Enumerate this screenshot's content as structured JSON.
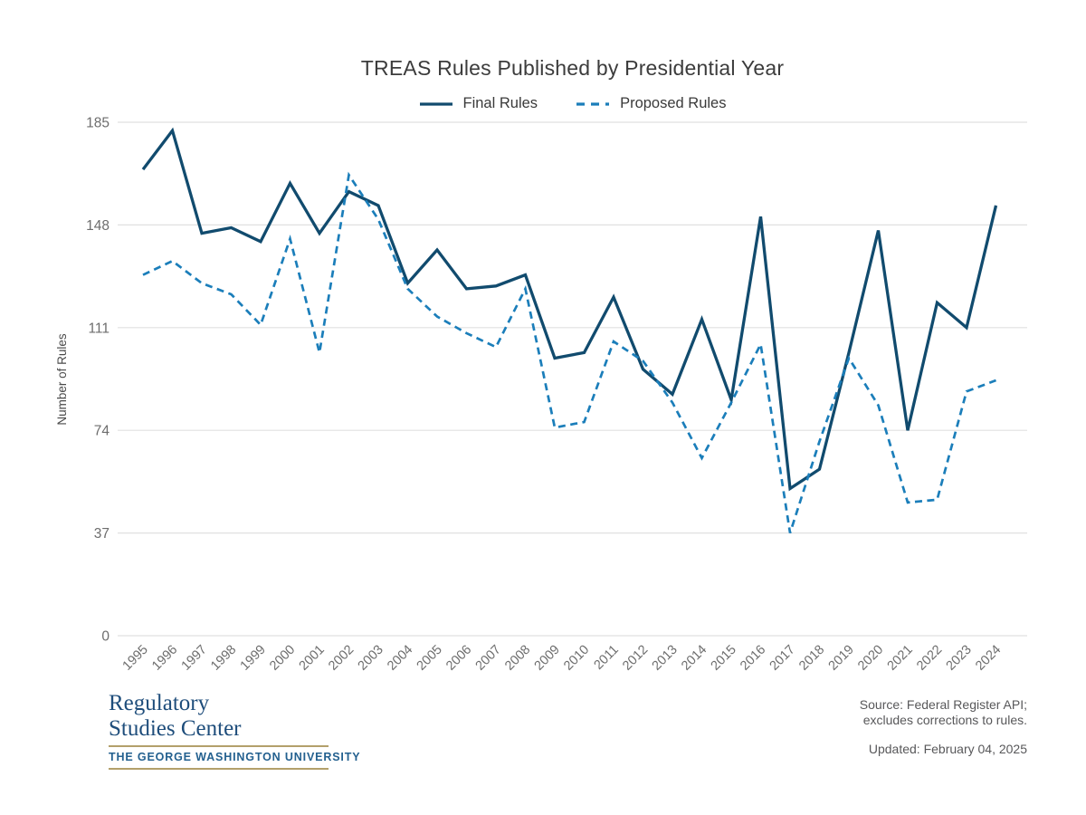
{
  "title": "TREAS Rules Published by Presidential Year",
  "legend": [
    {
      "label": "Final Rules"
    },
    {
      "label": "Proposed Rules"
    }
  ],
  "chart_data": {
    "type": "line",
    "title": "TREAS Rules Published by Presidential Year",
    "xlabel": "",
    "ylabel": "Number of Rules",
    "x": [
      1995,
      1996,
      1997,
      1998,
      1999,
      2000,
      2001,
      2002,
      2003,
      2004,
      2005,
      2006,
      2007,
      2008,
      2009,
      2010,
      2011,
      2012,
      2013,
      2014,
      2015,
      2016,
      2017,
      2018,
      2019,
      2020,
      2021,
      2022,
      2023,
      2024
    ],
    "series": [
      {
        "name": "Final Rules",
        "dash": false,
        "color": "#114b6e",
        "values": [
          168,
          182,
          145,
          147,
          142,
          163,
          145,
          160,
          155,
          127,
          139,
          125,
          126,
          130,
          100,
          102,
          122,
          96,
          87,
          114,
          85,
          151,
          53,
          60,
          102,
          146,
          74,
          120,
          111,
          155
        ]
      },
      {
        "name": "Proposed Rules",
        "dash": true,
        "color": "#1b7eba",
        "values": [
          130,
          135,
          127,
          123,
          112,
          143,
          102,
          166,
          150,
          125,
          115,
          109,
          104,
          125,
          75,
          77,
          106,
          99,
          84,
          64,
          84,
          105,
          37,
          70,
          100,
          83,
          48,
          49,
          88,
          92
        ]
      }
    ],
    "yticks": [
      0,
      37,
      74,
      111,
      148,
      185
    ],
    "ylim": [
      0,
      185
    ],
    "grid": true,
    "legend_position": "top-center",
    "gridline_color": "#e0e0e0",
    "tick_label_color": "#6d6d6d"
  },
  "footer": {
    "logo_line1": "Regulatory",
    "logo_line2": "Studies Center",
    "logo_sub": "THE GEORGE WASHINGTON UNIVERSITY",
    "source_line1": "Source: Federal Register API;",
    "source_line2": "excludes corrections to rules.",
    "updated": "Updated: February 04, 2025"
  }
}
